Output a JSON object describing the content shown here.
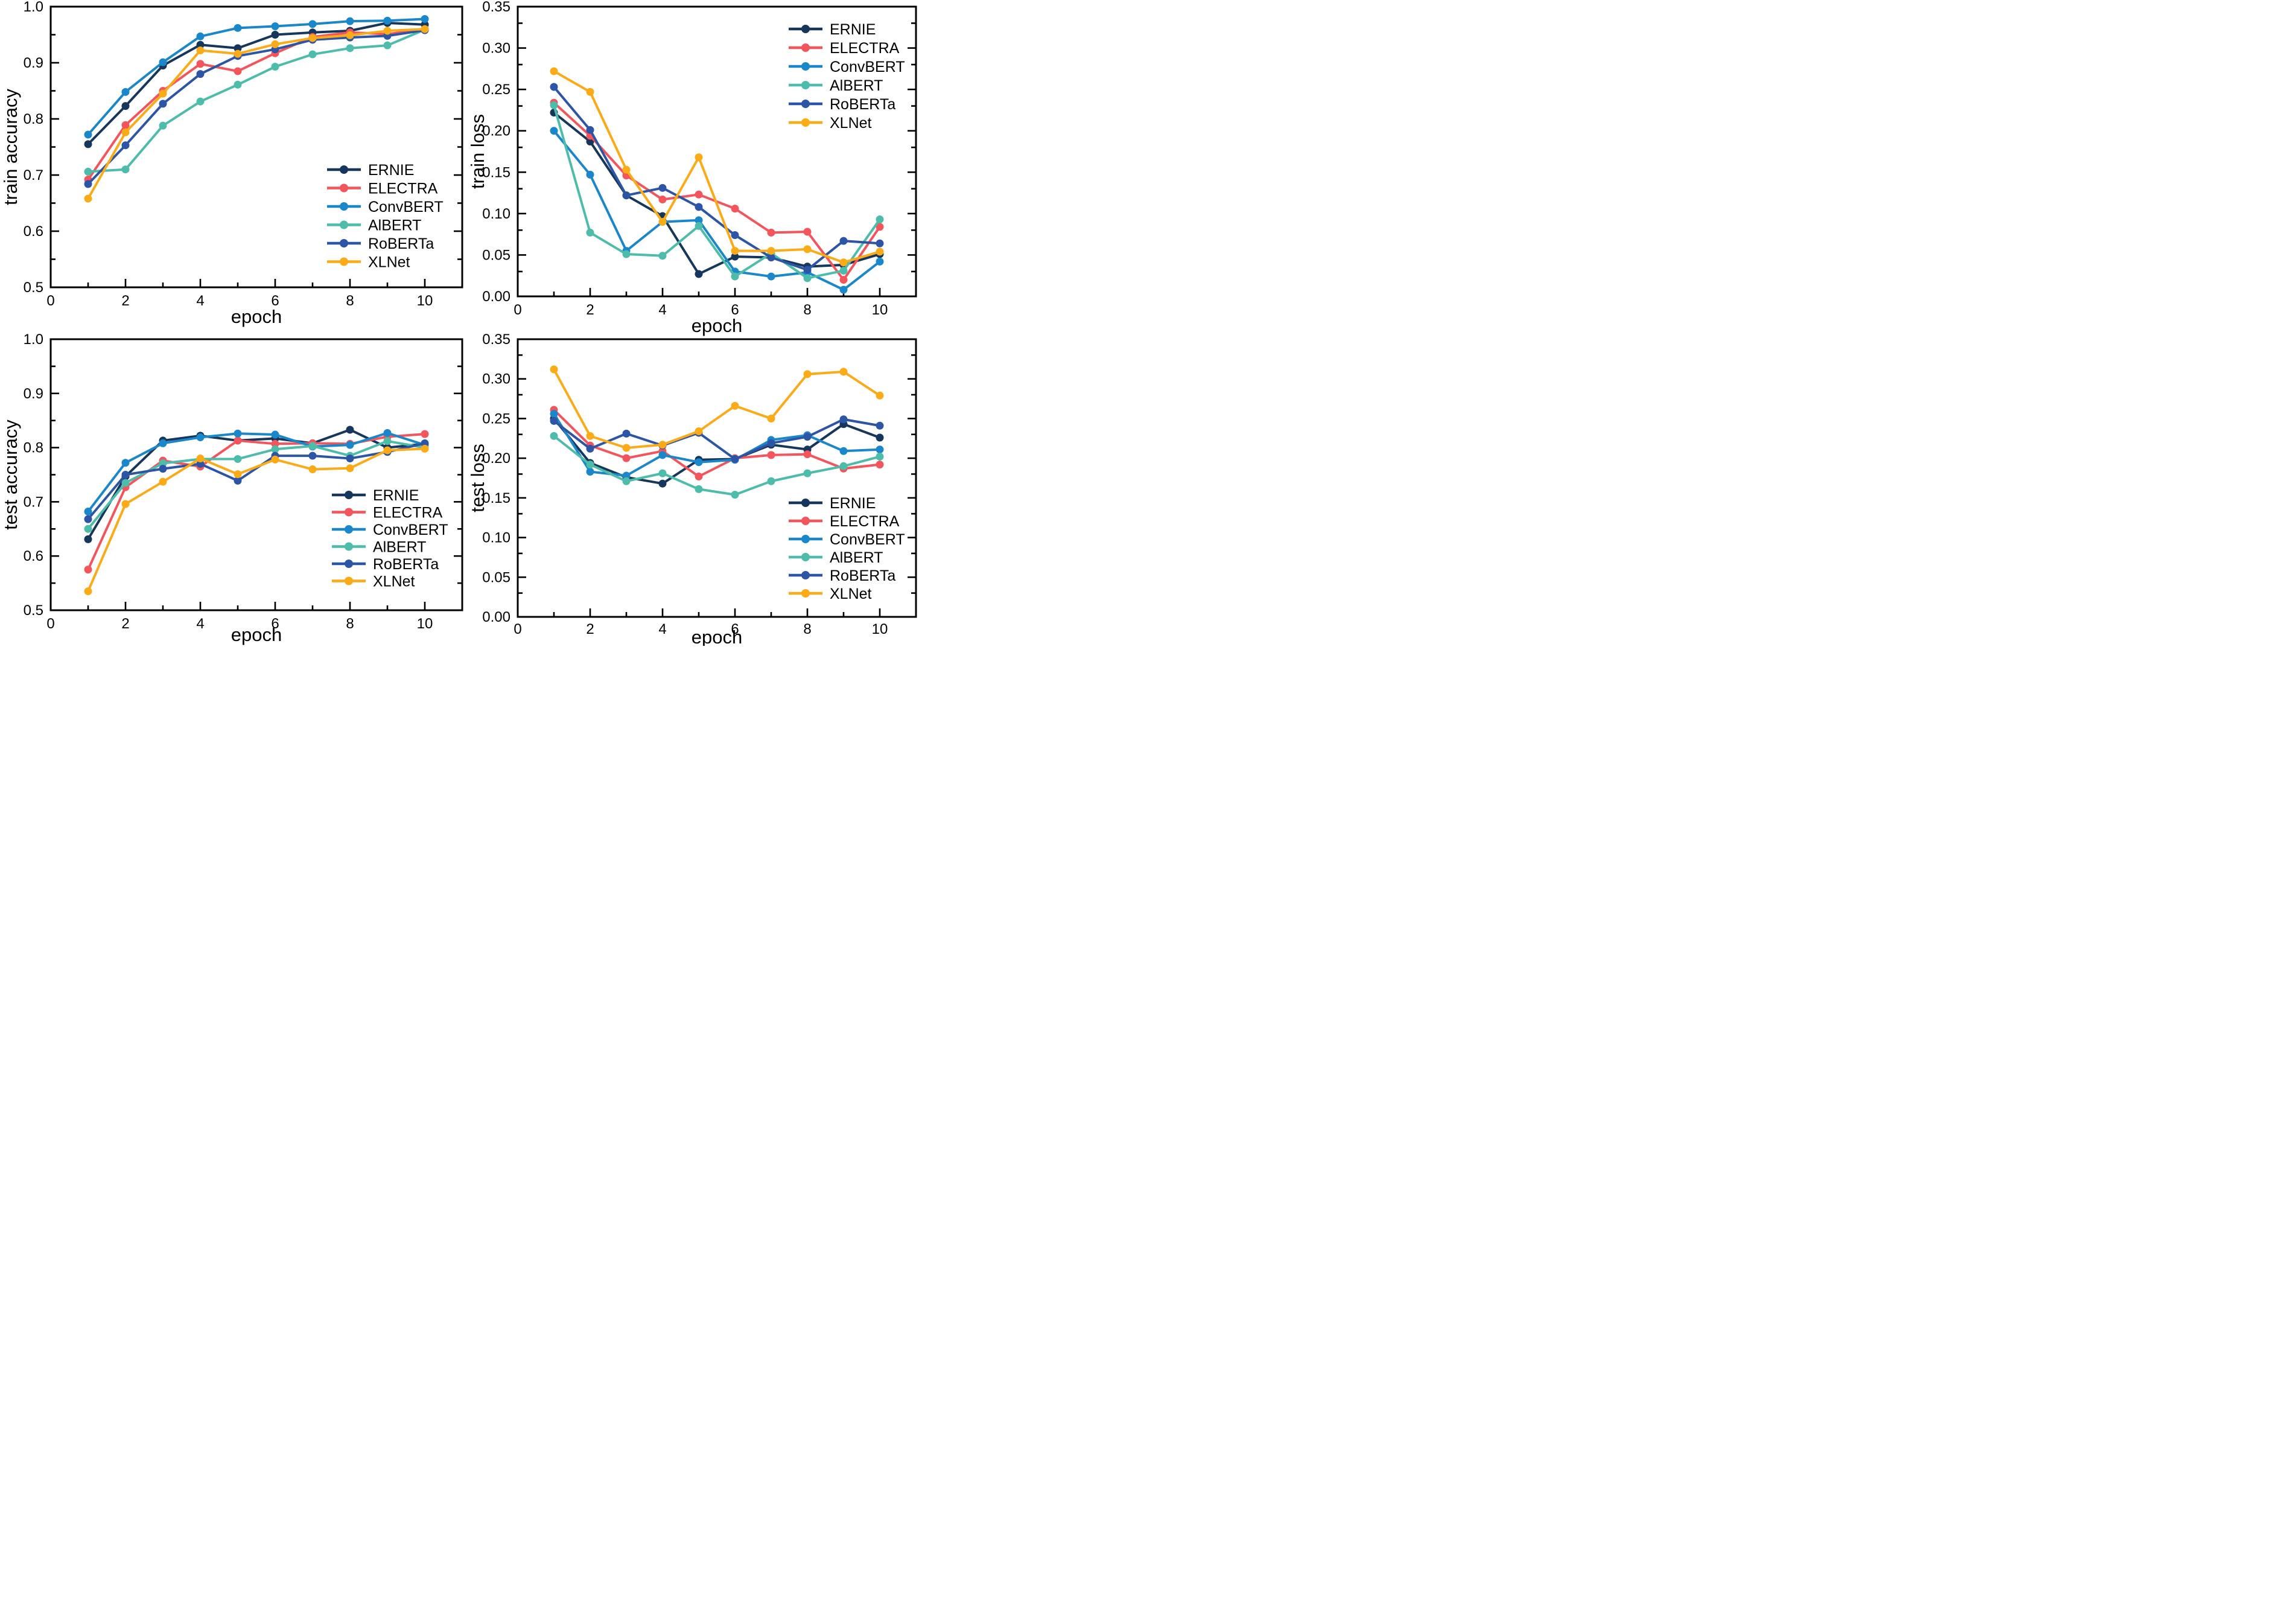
{
  "figure": {
    "description": "2x2 grid of training curves comparing six language models over 10 epochs",
    "background": "#ffffff",
    "axis_color": "#000000"
  },
  "palette": {
    "ERNIE": "#16365c",
    "ELECTRA": "#f4555c",
    "ConvBERT": "#1a87cb",
    "AlBERT": "#4dbcab",
    "RoBERTa": "#2d55a5",
    "XLNet": "#fbab18"
  },
  "chart_data": [
    {
      "id": "train-accuracy",
      "type": "line",
      "title": "",
      "xlabel": "epoch",
      "ylabel": "train accuracy",
      "x": [
        1,
        2,
        3,
        4,
        5,
        6,
        7,
        8,
        9,
        10
      ],
      "xlim": [
        0,
        11
      ],
      "xticks": [
        0,
        2,
        4,
        6,
        8,
        10
      ],
      "xticks_minor": [
        1,
        3,
        5,
        7,
        9,
        11
      ],
      "ylim": [
        0.5,
        1.0
      ],
      "ytick_step": 0.1,
      "yminor_step": 0.05,
      "ytick_decimals": 1,
      "grid": false,
      "legend_position": "inside-right-middle",
      "series": [
        {
          "name": "ERNIE",
          "values": [
            0.755,
            0.823,
            0.895,
            0.932,
            0.926,
            0.95,
            0.954,
            0.957,
            0.971,
            0.968
          ]
        },
        {
          "name": "ELECTRA",
          "values": [
            0.692,
            0.789,
            0.85,
            0.898,
            0.885,
            0.917,
            0.946,
            0.954,
            0.951,
            0.96
          ]
        },
        {
          "name": "ConvBERT",
          "values": [
            0.772,
            0.848,
            0.901,
            0.947,
            0.962,
            0.965,
            0.969,
            0.974,
            0.975,
            0.978
          ]
        },
        {
          "name": "AlBERT",
          "values": [
            0.706,
            0.71,
            0.788,
            0.831,
            0.861,
            0.893,
            0.915,
            0.926,
            0.931,
            0.959
          ]
        },
        {
          "name": "RoBERTa",
          "values": [
            0.684,
            0.753,
            0.827,
            0.88,
            0.912,
            0.924,
            0.941,
            0.945,
            0.948,
            0.958
          ]
        },
        {
          "name": "XLNet",
          "values": [
            0.658,
            0.776,
            0.845,
            0.922,
            0.916,
            0.933,
            0.944,
            0.949,
            0.957,
            0.96
          ]
        }
      ]
    },
    {
      "id": "train-loss",
      "type": "line",
      "title": "",
      "xlabel": "epoch",
      "ylabel": "train loss",
      "x": [
        1,
        2,
        3,
        4,
        5,
        6,
        7,
        8,
        9,
        10
      ],
      "xlim": [
        0,
        11
      ],
      "xticks": [
        0,
        2,
        4,
        6,
        8,
        10
      ],
      "xticks_minor": [
        1,
        3,
        5,
        7,
        9,
        11
      ],
      "ylim": [
        0.0,
        0.35
      ],
      "ytick_step": 0.05,
      "yminor_step": 0.025,
      "ytick_decimals": 2,
      "grid": false,
      "legend_position": "inside-top-right",
      "series": [
        {
          "name": "ERNIE",
          "values": [
            0.222,
            0.187,
            0.122,
            0.097,
            0.027,
            0.048,
            0.047,
            0.036,
            0.038,
            0.051
          ]
        },
        {
          "name": "ELECTRA",
          "values": [
            0.234,
            0.194,
            0.146,
            0.117,
            0.123,
            0.106,
            0.077,
            0.078,
            0.02,
            0.084
          ]
        },
        {
          "name": "ConvBERT",
          "values": [
            0.2,
            0.147,
            0.055,
            0.09,
            0.092,
            0.03,
            0.024,
            0.029,
            0.008,
            0.042
          ]
        },
        {
          "name": "AlBERT",
          "values": [
            0.231,
            0.077,
            0.051,
            0.049,
            0.085,
            0.024,
            0.052,
            0.022,
            0.031,
            0.093
          ]
        },
        {
          "name": "RoBERTa",
          "values": [
            0.253,
            0.201,
            0.122,
            0.131,
            0.108,
            0.074,
            0.047,
            0.032,
            0.067,
            0.064
          ]
        },
        {
          "name": "XLNet",
          "values": [
            0.272,
            0.247,
            0.153,
            0.09,
            0.168,
            0.055,
            0.055,
            0.057,
            0.041,
            0.054
          ]
        }
      ]
    },
    {
      "id": "test-accuracy",
      "type": "line",
      "title": "",
      "xlabel": "epoch",
      "ylabel": "test accuracy",
      "x": [
        1,
        2,
        3,
        4,
        5,
        6,
        7,
        8,
        9,
        10
      ],
      "xlim": [
        0,
        11
      ],
      "xticks": [
        0,
        2,
        4,
        6,
        8,
        10
      ],
      "xticks_minor": [
        1,
        3,
        5,
        7,
        9,
        11
      ],
      "ylim": [
        0.5,
        1.0
      ],
      "ytick_step": 0.1,
      "yminor_step": 0.05,
      "ytick_decimals": 1,
      "grid": false,
      "legend_position": "inside-bottom-right",
      "series": [
        {
          "name": "ERNIE",
          "values": [
            0.631,
            0.747,
            0.813,
            0.822,
            0.813,
            0.817,
            0.808,
            0.833,
            0.8,
            0.807
          ]
        },
        {
          "name": "ELECTRA",
          "values": [
            0.575,
            0.727,
            0.776,
            0.765,
            0.813,
            0.807,
            0.808,
            0.807,
            0.82,
            0.825
          ]
        },
        {
          "name": "ConvBERT",
          "values": [
            0.682,
            0.772,
            0.808,
            0.819,
            0.826,
            0.824,
            0.802,
            0.805,
            0.827,
            0.805
          ]
        },
        {
          "name": "AlBERT",
          "values": [
            0.65,
            0.735,
            0.771,
            0.779,
            0.779,
            0.797,
            0.803,
            0.785,
            0.812,
            0.8
          ]
        },
        {
          "name": "RoBERTa",
          "values": [
            0.668,
            0.75,
            0.761,
            0.77,
            0.739,
            0.785,
            0.785,
            0.78,
            0.792,
            0.808
          ]
        },
        {
          "name": "XLNet",
          "values": [
            0.535,
            0.696,
            0.737,
            0.78,
            0.751,
            0.778,
            0.76,
            0.762,
            0.795,
            0.798
          ]
        }
      ]
    },
    {
      "id": "test-loss",
      "type": "line",
      "title": "",
      "xlabel": "epoch",
      "ylabel": "test loss",
      "x": [
        1,
        2,
        3,
        4,
        5,
        6,
        7,
        8,
        9,
        10
      ],
      "xlim": [
        0,
        11
      ],
      "xticks": [
        0,
        2,
        4,
        6,
        8,
        10
      ],
      "xticks_minor": [
        1,
        3,
        5,
        7,
        9,
        11
      ],
      "ylim": [
        0.0,
        0.35
      ],
      "ytick_step": 0.05,
      "yminor_step": 0.025,
      "ytick_decimals": 2,
      "grid": false,
      "legend_position": "inside-bottom-right",
      "series": [
        {
          "name": "ERNIE",
          "values": [
            0.25,
            0.194,
            0.176,
            0.168,
            0.198,
            0.199,
            0.217,
            0.211,
            0.243,
            0.226
          ]
        },
        {
          "name": "ELECTRA",
          "values": [
            0.261,
            0.216,
            0.2,
            0.209,
            0.177,
            0.2,
            0.204,
            0.205,
            0.187,
            0.192
          ]
        },
        {
          "name": "ConvBERT",
          "values": [
            0.256,
            0.183,
            0.178,
            0.204,
            0.195,
            0.198,
            0.223,
            0.229,
            0.209,
            0.211
          ]
        },
        {
          "name": "AlBERT",
          "values": [
            0.228,
            0.192,
            0.171,
            0.181,
            0.161,
            0.154,
            0.171,
            0.181,
            0.19,
            0.202
          ]
        },
        {
          "name": "RoBERTa",
          "values": [
            0.247,
            0.212,
            0.231,
            0.216,
            0.232,
            0.199,
            0.219,
            0.227,
            0.249,
            0.241
          ]
        },
        {
          "name": "XLNet",
          "values": [
            0.312,
            0.228,
            0.213,
            0.217,
            0.234,
            0.266,
            0.25,
            0.306,
            0.309,
            0.279
          ]
        }
      ]
    }
  ]
}
